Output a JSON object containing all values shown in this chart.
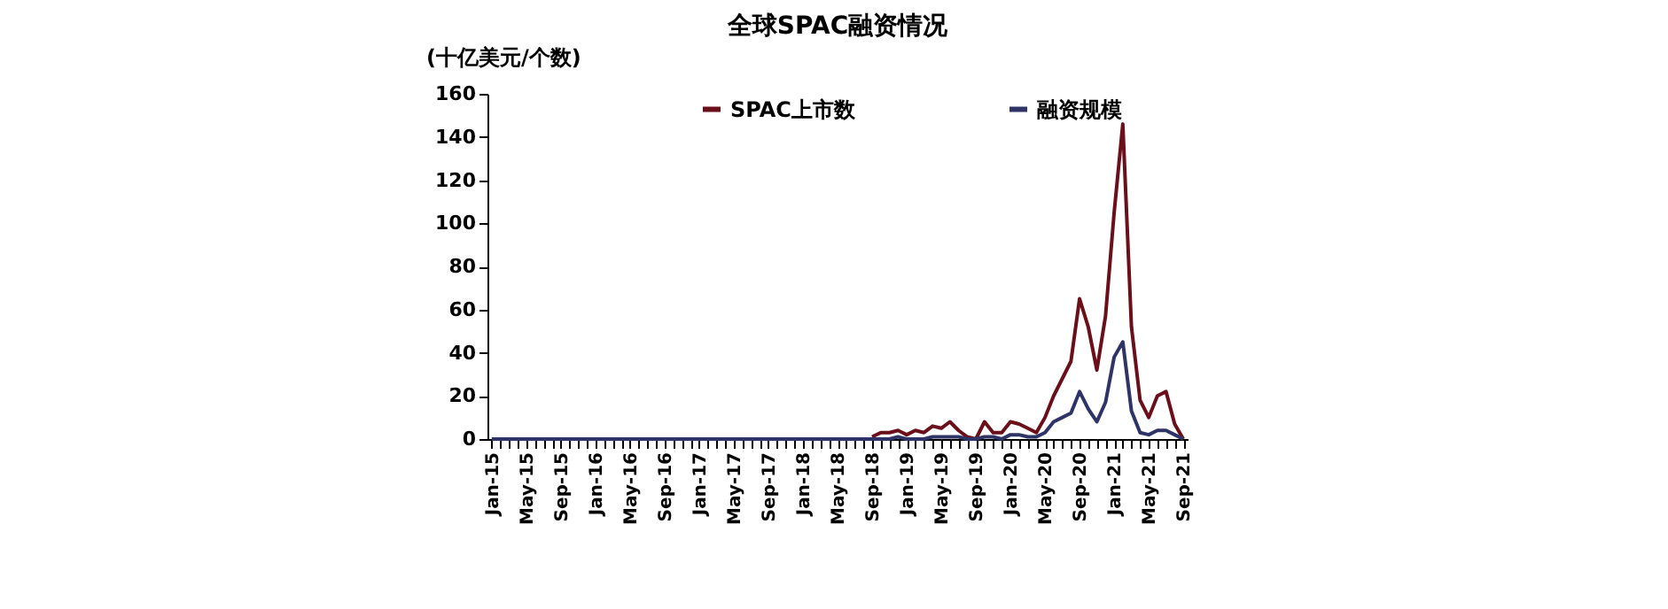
{
  "chart_data": {
    "type": "line",
    "title": "全球SPAC融资情况",
    "ylabel": "(十亿美元/个数)",
    "categories": [
      "Jan-15",
      null,
      null,
      null,
      "May-15",
      null,
      null,
      null,
      "Sep-15",
      null,
      null,
      null,
      "Jan-16",
      null,
      null,
      null,
      "May-16",
      null,
      null,
      null,
      "Sep-16",
      null,
      null,
      null,
      "Jan-17",
      null,
      null,
      null,
      "May-17",
      null,
      null,
      null,
      "Sep-17",
      null,
      null,
      null,
      "Jan-18",
      null,
      null,
      null,
      "May-18",
      null,
      null,
      null,
      "Sep-18",
      null,
      null,
      null,
      "Jan-19",
      null,
      null,
      null,
      "May-19",
      null,
      null,
      null,
      "Sep-19",
      null,
      null,
      null,
      "Jan-20",
      null,
      null,
      null,
      "May-20",
      null,
      null,
      null,
      "Sep-20",
      null,
      null,
      null,
      "Jan-21",
      null,
      null,
      null,
      "May-21",
      null,
      null,
      null,
      "Sep-21"
    ],
    "series": [
      {
        "name": "SPAC上市数",
        "color": "#6b0f1a",
        "values": [
          null,
          null,
          null,
          null,
          null,
          null,
          null,
          null,
          null,
          null,
          null,
          null,
          null,
          null,
          null,
          null,
          null,
          null,
          null,
          null,
          null,
          null,
          null,
          null,
          null,
          null,
          null,
          null,
          null,
          null,
          null,
          null,
          null,
          null,
          null,
          null,
          null,
          null,
          null,
          null,
          null,
          null,
          null,
          null,
          1,
          3,
          3,
          4,
          2,
          4,
          3,
          6,
          5,
          8,
          4,
          1,
          0,
          8,
          3,
          3,
          8,
          7,
          5,
          3,
          10,
          20,
          28,
          36,
          65,
          52,
          32,
          57,
          105,
          146,
          52,
          18,
          10,
          20,
          22,
          7,
          0
        ]
      },
      {
        "name": "融资规模",
        "color": "#2e3466",
        "values": [
          0,
          0,
          0,
          0,
          0,
          0,
          0,
          0,
          0,
          0,
          0,
          0,
          0,
          0,
          0,
          0,
          0,
          0,
          0,
          0,
          0,
          0,
          0,
          0,
          0,
          0,
          0,
          0,
          0,
          0,
          0,
          0,
          0,
          0,
          0,
          0,
          0,
          0,
          0,
          0,
          0,
          0,
          0,
          0,
          0,
          0,
          0,
          1,
          0,
          0,
          0,
          1,
          1,
          1,
          1,
          0,
          0,
          1,
          1,
          0,
          2,
          2,
          1,
          1,
          3,
          8,
          10,
          12,
          22,
          14,
          8,
          17,
          38,
          45,
          13,
          3,
          2,
          4,
          4,
          2,
          0
        ]
      }
    ],
    "ylim": [
      0,
      160
    ],
    "yticks": [
      0,
      20,
      40,
      60,
      80,
      100,
      120,
      140,
      160
    ],
    "grid": false,
    "legend": "top",
    "line_style": "solid",
    "marker": "none"
  }
}
